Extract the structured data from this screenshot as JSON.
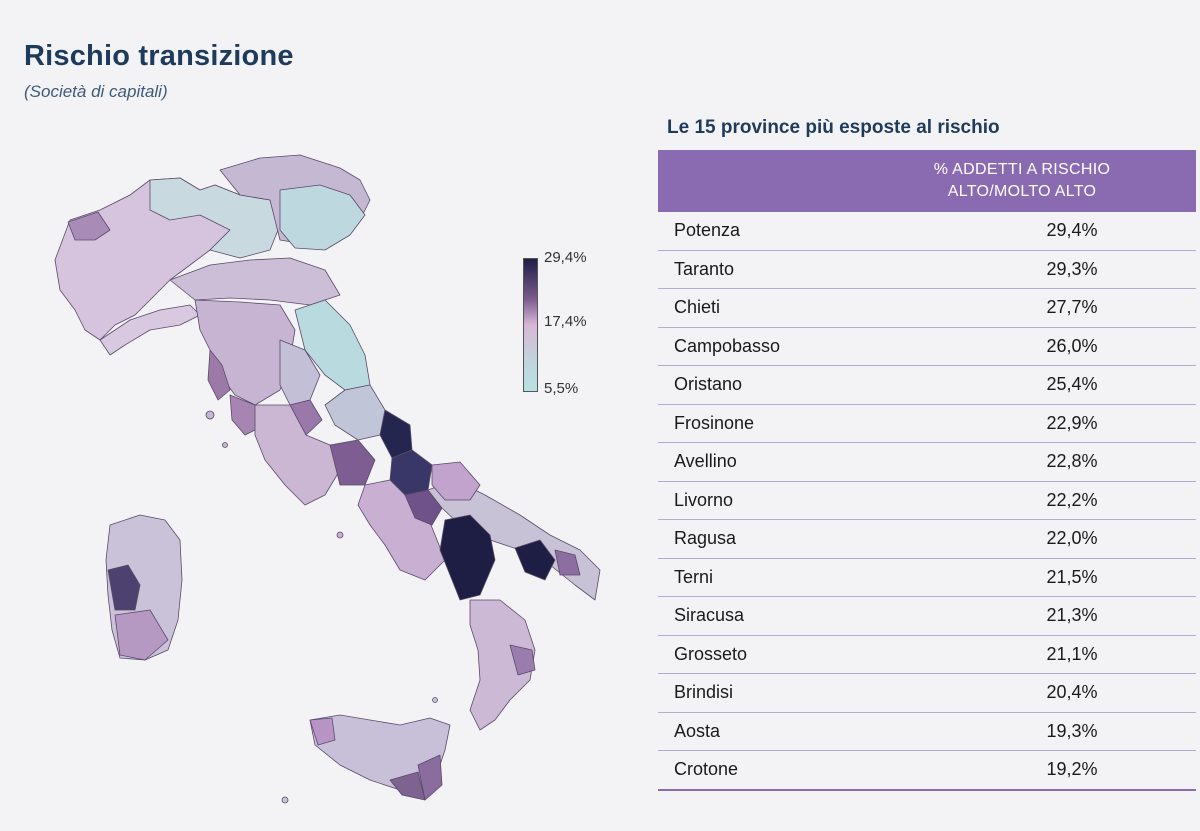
{
  "header": {
    "title": "Rischio transizione",
    "subtitle": "(Società di capitali)"
  },
  "legend": {
    "max": "29,4%",
    "mid": "17,4%",
    "min": "5,5%",
    "colors": [
      "#1e1e45",
      "#d7b7d6",
      "#b8e0e3"
    ]
  },
  "table": {
    "title": "Le 15 province più esposte al rischio",
    "header_line1": "% ADDETTI A RISCHIO",
    "header_line2": "ALTO/MOLTO ALTO",
    "rows": [
      {
        "province": "Potenza",
        "value": "29,4%"
      },
      {
        "province": "Taranto",
        "value": "29,3%"
      },
      {
        "province": "Chieti",
        "value": "27,7%"
      },
      {
        "province": "Campobasso",
        "value": "26,0%"
      },
      {
        "province": "Oristano",
        "value": "25,4%"
      },
      {
        "province": "Frosinone",
        "value": "22,9%"
      },
      {
        "province": "Avellino",
        "value": "22,8%"
      },
      {
        "province": "Livorno",
        "value": "22,2%"
      },
      {
        "province": "Ragusa",
        "value": "22,0%"
      },
      {
        "province": "Terni",
        "value": "21,5%"
      },
      {
        "province": "Siracusa",
        "value": "21,3%"
      },
      {
        "province": "Grosseto",
        "value": "21,1%"
      },
      {
        "province": "Brindisi",
        "value": "20,4%"
      },
      {
        "province": "Aosta",
        "value": "19,3%"
      },
      {
        "province": "Crotone",
        "value": "19,2%"
      }
    ]
  },
  "colors": {
    "accent": "#8a6bb2",
    "title": "#1f3b5c",
    "high": "#1e1e45",
    "low": "#b8e0e3"
  }
}
